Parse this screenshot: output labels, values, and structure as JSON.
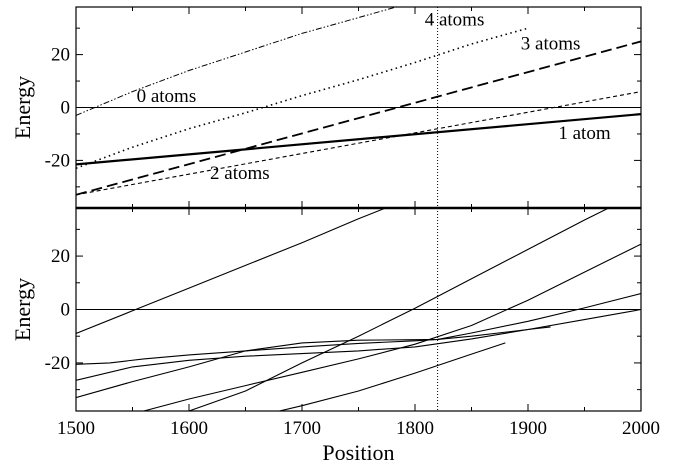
{
  "chart_data": [
    {
      "type": "line",
      "panel": "top",
      "ylabel": "Energy",
      "xlim": [
        1500,
        2000
      ],
      "ylim": [
        -38,
        38
      ],
      "yticks": [
        -20,
        0,
        20
      ],
      "grid": false,
      "legend": "none",
      "reference_lines": {
        "y": 0,
        "x": 1820
      },
      "series": [
        {
          "label": "0 atoms",
          "style": "solid-thin",
          "x": [
            1500,
            2000
          ],
          "y": [
            0,
            0
          ]
        },
        {
          "label": "1 atom",
          "style": "solid-thick",
          "x": [
            1500,
            2000
          ],
          "y": [
            -21.5,
            -2.5
          ]
        },
        {
          "label": "2 atoms",
          "style": "short-dash",
          "x": [
            1500,
            2000
          ],
          "y": [
            -33,
            6
          ]
        },
        {
          "label": "3 atoms",
          "style": "long-dash",
          "x": [
            1500,
            2000
          ],
          "y": [
            -33,
            25
          ]
        },
        {
          "label": "4 atoms",
          "style": "dotted",
          "x": [
            1500,
            1550,
            1600,
            1650,
            1700,
            1750,
            1800,
            1850,
            1900
          ],
          "y": [
            -23,
            -15,
            -8,
            -2,
            4.5,
            10.5,
            17,
            24,
            30
          ]
        },
        {
          "style": "dash-dot",
          "x": [
            1500,
            1550,
            1600,
            1650,
            1700,
            1750,
            1800,
            1850,
            1900
          ],
          "y": [
            -3,
            6,
            14,
            21,
            28,
            34,
            40,
            46,
            52
          ]
        }
      ],
      "annotations": [
        {
          "text": "0 atoms",
          "x": 1580,
          "y": 2
        },
        {
          "text": "1 atom",
          "x": 1950,
          "y": -12
        },
        {
          "text": "2 atoms",
          "x": 1645,
          "y": -27
        },
        {
          "text": "3 atoms",
          "x": 1920,
          "y": 22
        },
        {
          "text": "4 atoms",
          "x": 1835,
          "y": 31
        }
      ]
    },
    {
      "type": "line",
      "panel": "bottom",
      "xlabel": "Position",
      "ylabel": "Energy",
      "xlim": [
        1500,
        2000
      ],
      "ylim": [
        -38,
        38
      ],
      "xticks": [
        1500,
        1600,
        1700,
        1800,
        1900,
        2000
      ],
      "yticks": [
        -20,
        0,
        20
      ],
      "grid": false,
      "legend": "none",
      "reference_lines": {
        "y": 0,
        "x": 1820
      },
      "series": [
        {
          "style": "solid-thin",
          "x": [
            1500,
            1550,
            1600,
            1650,
            1700,
            1750,
            1780
          ],
          "y": [
            -9,
            -0.5,
            8,
            16.5,
            25,
            34,
            39
          ]
        },
        {
          "style": "solid-thin",
          "x": [
            1500,
            1530,
            1560,
            1600,
            1650,
            1700,
            1750,
            1800,
            1820,
            1850,
            1900,
            1920
          ],
          "y": [
            -20.5,
            -20,
            -18.5,
            -17,
            -15.5,
            -14,
            -12.7,
            -11.7,
            -11.2,
            -10,
            -7.5,
            -6.5
          ]
        },
        {
          "style": "solid-thin",
          "x": [
            1500,
            1550,
            1600,
            1650,
            1700,
            1750,
            1800,
            1850,
            1900,
            1950,
            2000
          ],
          "y": [
            -26.5,
            -21.5,
            -19,
            -17.5,
            -16.5,
            -15.5,
            -14,
            -11,
            -7.5,
            -3.8,
            0
          ]
        },
        {
          "style": "solid-thin",
          "x": [
            1500,
            1550,
            1600,
            1650,
            1700,
            1750,
            1800,
            1820,
            1850,
            1900,
            1950,
            2000
          ],
          "y": [
            -33,
            -27,
            -21.5,
            -15.5,
            -12.5,
            -11.5,
            -11.3,
            -11.2,
            -8.8,
            -4.4,
            0.6,
            6
          ]
        },
        {
          "style": "solid-thin",
          "x": [
            1560,
            1600,
            1650,
            1700,
            1750,
            1800,
            1850,
            1900,
            1950,
            2000
          ],
          "y": [
            -38,
            -33.5,
            -28.5,
            -23.5,
            -18.5,
            -13,
            -6,
            3.5,
            14,
            24.5
          ]
        },
        {
          "style": "solid-thin",
          "x": [
            1640,
            1700,
            1750,
            1800,
            1850,
            1880
          ],
          "y": [
            -42,
            -36,
            -30.5,
            -23.8,
            -16.7,
            -12.5
          ]
        },
        {
          "style": "solid-thin",
          "x": [
            1600,
            1650,
            1700,
            1750,
            1800,
            1850,
            1900,
            1950,
            2000
          ],
          "y": [
            -38,
            -30.5,
            -20,
            -10,
            0.5,
            11.5,
            22.5,
            33.5,
            44
          ]
        }
      ]
    }
  ]
}
